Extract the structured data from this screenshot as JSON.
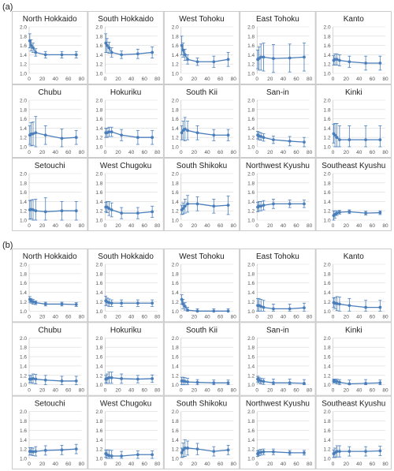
{
  "figure": {
    "panel_labels": [
      "(a)",
      "(b)"
    ]
  },
  "colors": {
    "series": "#4a7ebb",
    "grid": "#d9d9d9",
    "border": "#bfbfbf",
    "tick_text": "#555555",
    "title_text": "#222222"
  },
  "axes": {
    "x_ticks": [
      0,
      20,
      40,
      60,
      80
    ],
    "y_ticks": [
      1.0,
      1.2,
      1.4,
      1.6,
      1.8,
      2.0
    ],
    "xlim": [
      0,
      80
    ],
    "ylim": [
      1.0,
      2.0
    ]
  },
  "chart_data": [
    {
      "type": "line",
      "group": "(a)",
      "title": "North Hokkaido",
      "x": [
        1,
        3,
        6,
        10,
        25,
        50,
        72
      ],
      "y": [
        1.7,
        1.6,
        1.55,
        1.45,
        1.4,
        1.4,
        1.4
      ],
      "err": [
        0.15,
        0.12,
        0.1,
        0.08,
        0.07,
        0.07,
        0.07
      ]
    },
    {
      "type": "line",
      "group": "(a)",
      "title": "South Hokkaido",
      "x": [
        1,
        3,
        6,
        10,
        25,
        50,
        72
      ],
      "y": [
        1.65,
        1.6,
        1.55,
        1.45,
        1.4,
        1.42,
        1.45
      ],
      "err": [
        0.2,
        0.15,
        0.12,
        0.1,
        0.08,
        0.1,
        0.12
      ]
    },
    {
      "type": "line",
      "group": "(a)",
      "title": "West Tohoku",
      "x": [
        1,
        3,
        6,
        10,
        25,
        50,
        72
      ],
      "y": [
        1.6,
        1.5,
        1.4,
        1.3,
        1.25,
        1.25,
        1.3
      ],
      "err": [
        0.2,
        0.15,
        0.12,
        0.1,
        0.08,
        0.12,
        0.15
      ]
    },
    {
      "type": "line",
      "group": "(a)",
      "title": "East Tohoku",
      "x": [
        1,
        3,
        6,
        10,
        25,
        50,
        72
      ],
      "y": [
        1.3,
        1.32,
        1.35,
        1.35,
        1.32,
        1.33,
        1.35
      ],
      "err": [
        0.2,
        0.25,
        0.28,
        0.3,
        0.3,
        0.3,
        0.3
      ]
    },
    {
      "type": "line",
      "group": "(a)",
      "title": "Kanto",
      "x": [
        1,
        3,
        6,
        10,
        25,
        50,
        72
      ],
      "y": [
        1.28,
        1.3,
        1.3,
        1.28,
        1.25,
        1.22,
        1.22
      ],
      "err": [
        0.1,
        0.12,
        0.12,
        0.12,
        0.12,
        0.15,
        0.15
      ]
    },
    {
      "type": "line",
      "group": "(a)",
      "title": "Chubu",
      "x": [
        1,
        3,
        6,
        10,
        25,
        50,
        72
      ],
      "y": [
        1.25,
        1.27,
        1.28,
        1.3,
        1.25,
        1.18,
        1.2
      ],
      "err": [
        0.2,
        0.25,
        0.25,
        0.35,
        0.2,
        0.2,
        0.15
      ]
    },
    {
      "type": "line",
      "group": "(a)",
      "title": "Hokuriku",
      "x": [
        1,
        3,
        6,
        10,
        25,
        50,
        72
      ],
      "y": [
        1.3,
        1.3,
        1.32,
        1.32,
        1.25,
        1.2,
        1.2
      ],
      "err": [
        0.1,
        0.1,
        0.1,
        0.1,
        0.12,
        0.15,
        0.15
      ]
    },
    {
      "type": "line",
      "group": "(a)",
      "title": "South Kii",
      "x": [
        1,
        3,
        6,
        10,
        25,
        50,
        72
      ],
      "y": [
        1.3,
        1.35,
        1.38,
        1.35,
        1.3,
        1.25,
        1.25
      ],
      "err": [
        0.15,
        0.2,
        0.25,
        0.2,
        0.15,
        0.12,
        0.12
      ]
    },
    {
      "type": "line",
      "group": "(a)",
      "title": "San-in",
      "x": [
        1,
        3,
        6,
        10,
        25,
        50,
        72
      ],
      "y": [
        1.25,
        1.23,
        1.22,
        1.2,
        1.15,
        1.12,
        1.1
      ],
      "err": [
        0.08,
        0.08,
        0.08,
        0.08,
        0.08,
        0.1,
        0.1
      ]
    },
    {
      "type": "line",
      "group": "(a)",
      "title": "Kinki",
      "x": [
        1,
        3,
        6,
        10,
        25,
        50,
        72
      ],
      "y": [
        1.28,
        1.25,
        1.2,
        1.15,
        1.15,
        1.15,
        1.15
      ],
      "err": [
        0.2,
        0.25,
        0.3,
        0.3,
        0.3,
        0.3,
        0.3
      ]
    },
    {
      "type": "line",
      "group": "(a)",
      "title": "Setouchi",
      "x": [
        1,
        3,
        6,
        10,
        25,
        50,
        72
      ],
      "y": [
        1.22,
        1.23,
        1.22,
        1.2,
        1.18,
        1.2,
        1.2
      ],
      "err": [
        0.2,
        0.2,
        0.22,
        0.25,
        0.3,
        0.2,
        0.2
      ]
    },
    {
      "type": "line",
      "group": "(a)",
      "title": "West Chugoku",
      "x": [
        1,
        3,
        6,
        10,
        25,
        50,
        72
      ],
      "y": [
        1.28,
        1.28,
        1.25,
        1.22,
        1.15,
        1.15,
        1.18
      ],
      "err": [
        0.1,
        0.12,
        0.15,
        0.15,
        0.12,
        0.12,
        0.12
      ]
    },
    {
      "type": "line",
      "group": "(a)",
      "title": "South Shikoku",
      "x": [
        1,
        3,
        6,
        10,
        25,
        50,
        72
      ],
      "y": [
        1.22,
        1.25,
        1.3,
        1.35,
        1.35,
        1.3,
        1.32
      ],
      "err": [
        0.1,
        0.12,
        0.15,
        0.18,
        0.15,
        0.15,
        0.2
      ]
    },
    {
      "type": "line",
      "group": "(a)",
      "title": "Northwest Kyushu",
      "x": [
        1,
        3,
        6,
        10,
        25,
        50,
        72
      ],
      "y": [
        1.28,
        1.3,
        1.3,
        1.32,
        1.35,
        1.35,
        1.35
      ],
      "err": [
        0.1,
        0.1,
        0.1,
        0.1,
        0.1,
        0.08,
        0.08
      ]
    },
    {
      "type": "line",
      "group": "(a)",
      "title": "Southeast Kyushu",
      "x": [
        1,
        3,
        6,
        10,
        25,
        50,
        72
      ],
      "y": [
        1.1,
        1.12,
        1.15,
        1.17,
        1.18,
        1.15,
        1.16
      ],
      "err": [
        0.1,
        0.08,
        0.05,
        0.04,
        0.04,
        0.04,
        0.04
      ]
    },
    {
      "type": "line",
      "group": "(b)",
      "title": "North Hokkaido",
      "x": [
        1,
        3,
        6,
        10,
        25,
        50,
        72
      ],
      "y": [
        1.25,
        1.22,
        1.2,
        1.18,
        1.15,
        1.15,
        1.14
      ],
      "err": [
        0.06,
        0.05,
        0.05,
        0.04,
        0.04,
        0.04,
        0.04
      ]
    },
    {
      "type": "line",
      "group": "(b)",
      "title": "South Hokkaido",
      "x": [
        1,
        3,
        6,
        10,
        25,
        50,
        72
      ],
      "y": [
        1.22,
        1.2,
        1.18,
        1.17,
        1.17,
        1.17,
        1.17
      ],
      "err": [
        0.1,
        0.08,
        0.08,
        0.07,
        0.07,
        0.07,
        0.07
      ]
    },
    {
      "type": "line",
      "group": "(b)",
      "title": "West Tohoku",
      "x": [
        1,
        3,
        6,
        10,
        25,
        50,
        72
      ],
      "y": [
        1.25,
        1.15,
        1.1,
        1.02,
        1.0,
        1.0,
        1.0
      ],
      "err": [
        0.1,
        0.1,
        0.08,
        0.06,
        0.05,
        0.05,
        0.05
      ]
    },
    {
      "type": "line",
      "group": "(b)",
      "title": "East Tohoku",
      "x": [
        1,
        3,
        6,
        10,
        25,
        50,
        72
      ],
      "y": [
        1.12,
        1.12,
        1.1,
        1.08,
        1.05,
        1.05,
        1.07
      ],
      "err": [
        0.15,
        0.15,
        0.15,
        0.15,
        0.1,
        0.1,
        0.1
      ]
    },
    {
      "type": "line",
      "group": "(b)",
      "title": "Kanto",
      "x": [
        1,
        3,
        6,
        10,
        25,
        50,
        72
      ],
      "y": [
        1.18,
        1.17,
        1.16,
        1.15,
        1.12,
        1.08,
        1.08
      ],
      "err": [
        0.1,
        0.12,
        0.15,
        0.15,
        0.15,
        0.15,
        0.15
      ]
    },
    {
      "type": "line",
      "group": "(b)",
      "title": "Chubu",
      "x": [
        1,
        3,
        6,
        10,
        25,
        50,
        72
      ],
      "y": [
        1.12,
        1.12,
        1.13,
        1.12,
        1.1,
        1.08,
        1.08
      ],
      "err": [
        0.08,
        0.08,
        0.1,
        0.1,
        0.1,
        0.1,
        0.1
      ]
    },
    {
      "type": "line",
      "group": "(b)",
      "title": "Hokuriku",
      "x": [
        1,
        3,
        6,
        10,
        25,
        50,
        72
      ],
      "y": [
        1.12,
        1.13,
        1.15,
        1.15,
        1.13,
        1.12,
        1.13
      ],
      "err": [
        0.08,
        0.1,
        0.12,
        0.12,
        0.1,
        0.08,
        0.08
      ]
    },
    {
      "type": "line",
      "group": "(b)",
      "title": "South Kii",
      "x": [
        1,
        3,
        6,
        10,
        25,
        50,
        72
      ],
      "y": [
        1.08,
        1.08,
        1.07,
        1.06,
        1.05,
        1.04,
        1.04
      ],
      "err": [
        0.08,
        0.08,
        0.08,
        0.08,
        0.06,
        0.06,
        0.06
      ]
    },
    {
      "type": "line",
      "group": "(b)",
      "title": "San-in",
      "x": [
        1,
        3,
        6,
        10,
        25,
        50,
        72
      ],
      "y": [
        1.12,
        1.1,
        1.08,
        1.07,
        1.04,
        1.04,
        1.03
      ],
      "err": [
        0.06,
        0.06,
        0.06,
        0.06,
        0.08,
        0.08,
        0.08
      ]
    },
    {
      "type": "line",
      "group": "(b)",
      "title": "Kinki",
      "x": [
        1,
        3,
        6,
        10,
        25,
        50,
        72
      ],
      "y": [
        1.08,
        1.08,
        1.07,
        1.05,
        1.02,
        1.03,
        1.04
      ],
      "err": [
        0.04,
        0.04,
        0.05,
        0.06,
        0.08,
        0.08,
        0.06
      ]
    },
    {
      "type": "line",
      "group": "(b)",
      "title": "Setouchi",
      "x": [
        1,
        3,
        6,
        10,
        25,
        50,
        72
      ],
      "y": [
        1.15,
        1.15,
        1.14,
        1.15,
        1.17,
        1.18,
        1.2
      ],
      "err": [
        0.08,
        0.08,
        0.08,
        0.1,
        0.1,
        0.1,
        0.1
      ]
    },
    {
      "type": "line",
      "group": "(b)",
      "title": "West Chugoku",
      "x": [
        1,
        3,
        6,
        10,
        25,
        50,
        72
      ],
      "y": [
        1.1,
        1.08,
        1.06,
        1.05,
        1.05,
        1.08,
        1.08
      ],
      "err": [
        0.08,
        0.1,
        0.12,
        0.12,
        0.1,
        0.08,
        0.08
      ]
    },
    {
      "type": "line",
      "group": "(b)",
      "title": "South Shikoku",
      "x": [
        1,
        3,
        6,
        10,
        25,
        50,
        72
      ],
      "y": [
        1.12,
        1.18,
        1.22,
        1.22,
        1.2,
        1.15,
        1.18
      ],
      "err": [
        0.1,
        0.15,
        0.18,
        0.15,
        0.12,
        0.1,
        0.1
      ]
    },
    {
      "type": "line",
      "group": "(b)",
      "title": "Northwest Kyushu",
      "x": [
        1,
        3,
        6,
        10,
        25,
        50,
        72
      ],
      "y": [
        1.1,
        1.12,
        1.13,
        1.14,
        1.14,
        1.12,
        1.12
      ],
      "err": [
        0.06,
        0.06,
        0.06,
        0.06,
        0.06,
        0.05,
        0.05
      ]
    },
    {
      "type": "line",
      "group": "(b)",
      "title": "Southeast Kyushu",
      "x": [
        1,
        3,
        6,
        10,
        25,
        50,
        72
      ],
      "y": [
        1.1,
        1.12,
        1.15,
        1.15,
        1.15,
        1.15,
        1.16
      ],
      "err": [
        0.08,
        0.1,
        0.12,
        0.12,
        0.1,
        0.1,
        0.1
      ]
    }
  ]
}
